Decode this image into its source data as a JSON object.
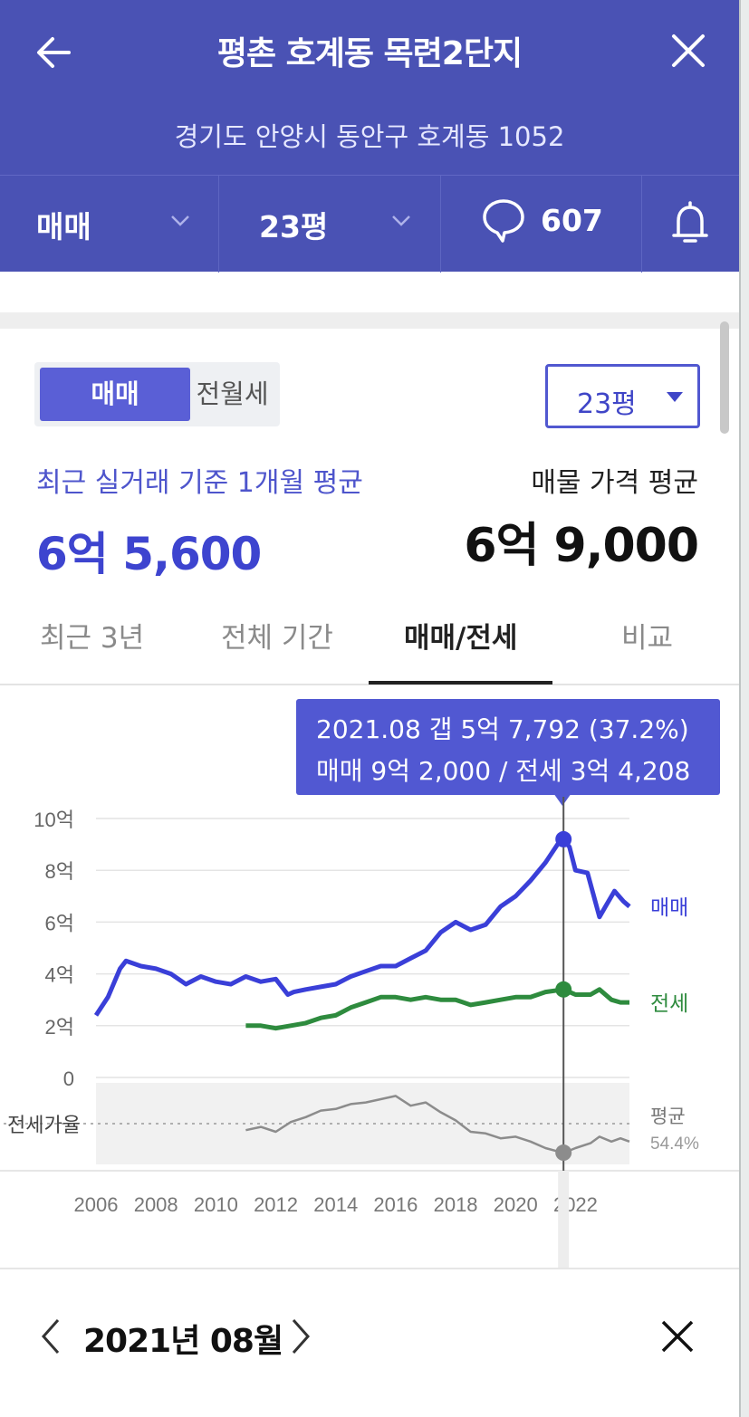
{
  "header": {
    "title": "평촌 호계동 목련2단지",
    "address": "경기도 안양시 동안구 호계동 1052",
    "back_icon": "arrow-left-icon",
    "close_icon": "close-icon"
  },
  "toolbar": {
    "trade_type": "매매",
    "size": "23평",
    "comment_count": "607",
    "comment_icon": "speech-bubble-icon",
    "alert_icon": "bell-icon"
  },
  "panel": {
    "segment": {
      "active": "매매",
      "inactive": "전월세"
    },
    "size_select": "23평",
    "recent_label": "최근 실거래 기준 1개월 평균",
    "recent_value": "6억 5,600",
    "listing_label": "매물 가격 평균",
    "listing_value": "6억 9,000"
  },
  "tabs": [
    {
      "label": "최근 3년",
      "active": false
    },
    {
      "label": "전체 기간",
      "active": false
    },
    {
      "label": "매매/전세",
      "active": true
    },
    {
      "label": "비교",
      "active": false
    }
  ],
  "tooltip": {
    "line1": "2021.08  갭 5억 7,792 (37.2%)",
    "line2": "매매 9억 2,000 / 전세 3억 4,208"
  },
  "colors": {
    "header": "#4a52b4",
    "accent": "#3d44cf",
    "sale": "#3a3fd8",
    "jeonse": "#2e8b3e",
    "ratio": "#8c8c8c"
  },
  "chart_data": {
    "type": "line",
    "y_ticks": [
      "10억",
      "8억",
      "6억",
      "4억",
      "2억",
      "0"
    ],
    "y_values": [
      10,
      8,
      6,
      4,
      2,
      0
    ],
    "ylim": [
      0,
      10
    ],
    "x_ticks": [
      "2006",
      "2008",
      "2010",
      "2012",
      "2014",
      "2016",
      "2018",
      "2020",
      "2022"
    ],
    "xlim": [
      2006,
      2023.8
    ],
    "series": [
      {
        "name": "매매",
        "x": [
          2006.0,
          2006.4,
          2006.8,
          2007.0,
          2007.5,
          2008.0,
          2008.5,
          2009.0,
          2009.5,
          2010.0,
          2010.5,
          2011.0,
          2011.5,
          2012.0,
          2012.4,
          2012.6,
          2013.0,
          2013.5,
          2014.0,
          2014.5,
          2015.0,
          2015.5,
          2016.0,
          2016.5,
          2017.0,
          2017.5,
          2018.0,
          2018.5,
          2019.0,
          2019.5,
          2020.0,
          2020.5,
          2021.0,
          2021.4,
          2021.6,
          2021.8,
          2022.0,
          2022.4,
          2022.8,
          2023.0,
          2023.3,
          2023.6,
          2023.8
        ],
        "values": [
          2.4,
          3.1,
          4.2,
          4.5,
          4.3,
          4.2,
          4.0,
          3.6,
          3.9,
          3.7,
          3.6,
          3.9,
          3.7,
          3.8,
          3.2,
          3.3,
          3.4,
          3.5,
          3.6,
          3.9,
          4.1,
          4.3,
          4.3,
          4.6,
          4.9,
          5.6,
          6.0,
          5.7,
          5.9,
          6.6,
          7.0,
          7.6,
          8.3,
          9.0,
          9.2,
          8.9,
          8.0,
          7.9,
          6.2,
          6.6,
          7.2,
          6.8,
          6.6
        ]
      },
      {
        "name": "전세",
        "x": [
          2011.0,
          2011.5,
          2012.0,
          2012.5,
          2013.0,
          2013.5,
          2014.0,
          2014.5,
          2015.0,
          2015.5,
          2016.0,
          2016.5,
          2017.0,
          2017.5,
          2018.0,
          2018.5,
          2019.0,
          2019.5,
          2020.0,
          2020.5,
          2021.0,
          2021.6,
          2022.0,
          2022.5,
          2022.8,
          2023.2,
          2023.5,
          2023.8
        ],
        "values": [
          2.0,
          2.0,
          1.9,
          2.0,
          2.1,
          2.3,
          2.4,
          2.7,
          2.9,
          3.1,
          3.1,
          3.0,
          3.1,
          3.0,
          3.0,
          2.8,
          2.9,
          3.0,
          3.1,
          3.1,
          3.3,
          3.4,
          3.2,
          3.2,
          3.4,
          3.0,
          2.9,
          2.9
        ]
      }
    ],
    "ratio": {
      "label": "전세가율",
      "avg_label": "평균",
      "avg_value": "54.4%",
      "x": [
        2011.0,
        2011.5,
        2012.0,
        2012.5,
        2013.0,
        2013.5,
        2014.0,
        2014.5,
        2015.0,
        2015.5,
        2016.0,
        2016.5,
        2017.0,
        2017.5,
        2018.0,
        2018.5,
        2019.0,
        2019.5,
        2020.0,
        2020.5,
        2021.0,
        2021.6,
        2022.0,
        2022.5,
        2022.8,
        2023.2,
        2023.5,
        2023.8
      ],
      "values": [
        51,
        53,
        50,
        56,
        59,
        63,
        64,
        67,
        68,
        70,
        72,
        66,
        68,
        62,
        57,
        50,
        49,
        46,
        47,
        44,
        40,
        37,
        40,
        43,
        47,
        44,
        46,
        44
      ]
    },
    "highlight": {
      "x": 2021.6,
      "sale": 9.2,
      "jeonse": 3.4,
      "ratio": 37.2
    }
  },
  "date_bar": {
    "date": "2021년 08월"
  }
}
